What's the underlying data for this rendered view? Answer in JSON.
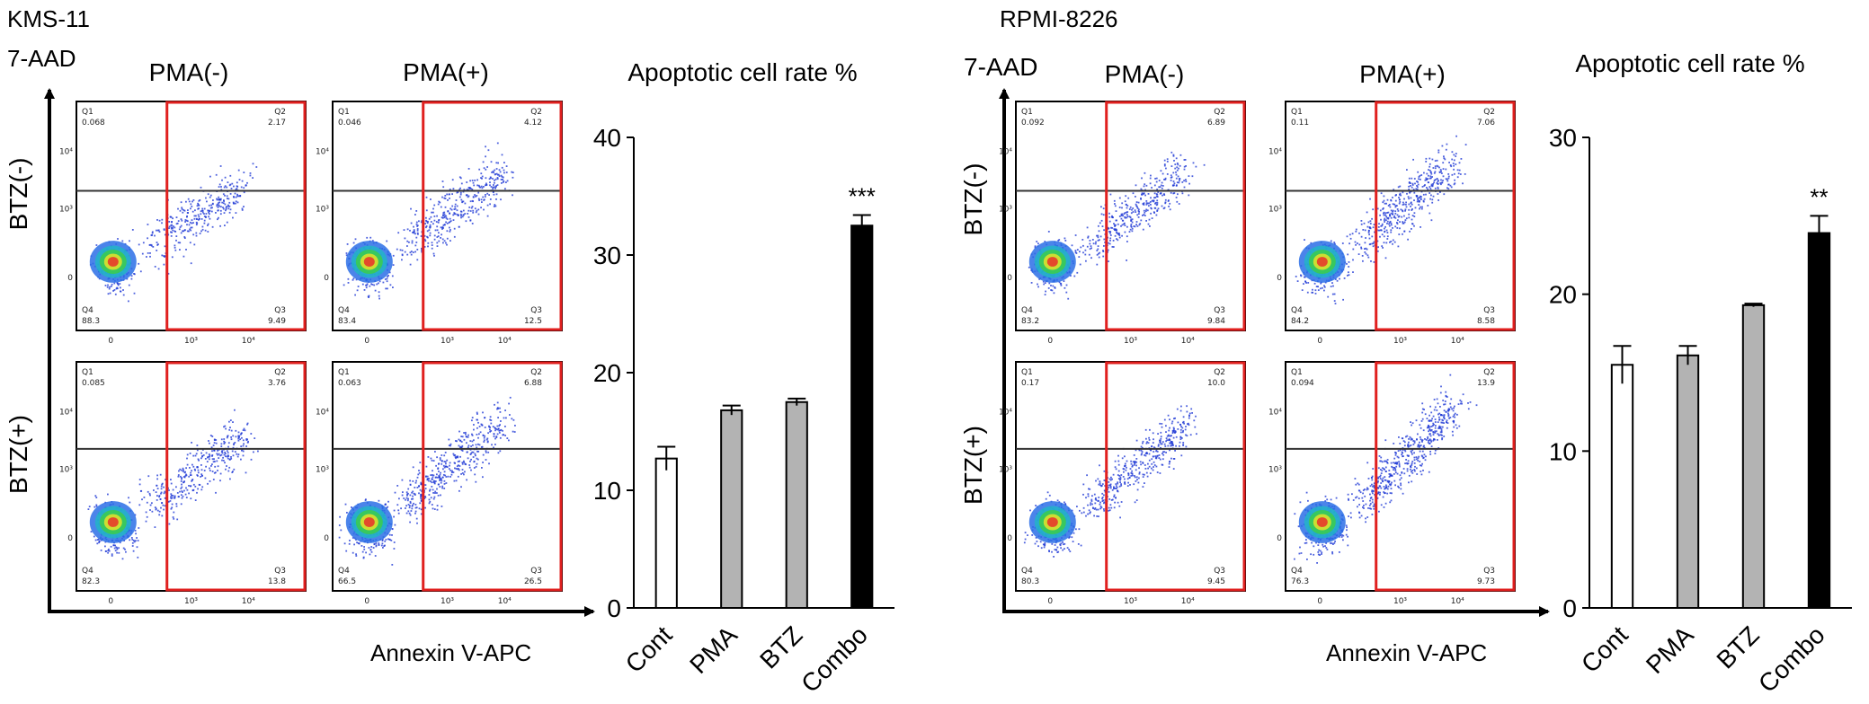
{
  "panels": [
    {
      "cell_line": "KMS-11",
      "y_axis_label": "7-AAD",
      "x_axis_label": "Annexin V-APC",
      "col_headers": [
        "PMA(-)",
        "PMA(+)"
      ],
      "row_labels": [
        "BTZ(-)",
        "BTZ(+)"
      ],
      "flow_plots": [
        {
          "q1": "Q1",
          "q1_val": "0.068",
          "q2": "Q2",
          "q2_val": "2.17",
          "q3": "Q3",
          "q3_val": "9.49",
          "q4": "Q4",
          "q4_val": "88.3"
        },
        {
          "q1": "Q1",
          "q1_val": "0.046",
          "q2": "Q2",
          "q2_val": "4.12",
          "q3": "Q3",
          "q3_val": "12.5",
          "q4": "Q4",
          "q4_val": "83.4"
        },
        {
          "q1": "Q1",
          "q1_val": "0.085",
          "q2": "Q2",
          "q2_val": "3.76",
          "q3": "Q3",
          "q3_val": "13.8",
          "q4": "Q4",
          "q4_val": "82.3"
        },
        {
          "q1": "Q1",
          "q1_val": "0.063",
          "q2": "Q2",
          "q2_val": "6.88",
          "q3": "Q3",
          "q3_val": "26.5",
          "q4": "Q4",
          "q4_val": "66.5"
        }
      ]
    },
    {
      "cell_line": "RPMI-8226",
      "y_axis_label": "7-AAD",
      "x_axis_label": "Annexin V-APC",
      "col_headers": [
        "PMA(-)",
        "PMA(+)"
      ],
      "row_labels": [
        "BTZ(-)",
        "BTZ(+)"
      ],
      "flow_plots": [
        {
          "q1": "Q1",
          "q1_val": "0.092",
          "q2": "Q2",
          "q2_val": "6.89",
          "q3": "Q3",
          "q3_val": "9.84",
          "q4": "Q4",
          "q4_val": "83.2"
        },
        {
          "q1": "Q1",
          "q1_val": "0.11",
          "q2": "Q2",
          "q2_val": "7.06",
          "q3": "Q3",
          "q3_val": "8.58",
          "q4": "Q4",
          "q4_val": "84.2"
        },
        {
          "q1": "Q1",
          "q1_val": "0.17",
          "q2": "Q2",
          "q2_val": "10.0",
          "q3": "Q3",
          "q3_val": "9.45",
          "q4": "Q4",
          "q4_val": "80.3"
        },
        {
          "q1": "Q1",
          "q1_val": "0.094",
          "q2": "Q2",
          "q2_val": "13.9",
          "q3": "Q3",
          "q3_val": "9.73",
          "q4": "Q4",
          "q4_val": "76.3"
        }
      ]
    }
  ],
  "axis_tick_labels": {
    "x": [
      "0",
      "10³",
      "10⁴"
    ],
    "y": [
      "0",
      "10³",
      "10⁴"
    ]
  },
  "colors": {
    "gate": "#e0201f",
    "quadrant_line": "#333333",
    "dot_blue": "#1f3ad6",
    "hot": "#e8302a",
    "bar_cont": "#ffffff",
    "bar_mid": "#b3b3b3",
    "bar_combo": "#000000"
  },
  "chart_data": [
    {
      "type": "bar",
      "title": "Apoptotic cell rate %",
      "categories": [
        "Cont",
        "PMA",
        "BTZ",
        "Combo"
      ],
      "values": [
        12.7,
        16.8,
        17.5,
        32.5
      ],
      "errors": [
        1.0,
        0.4,
        0.3,
        0.9
      ],
      "significance": [
        "",
        "",
        "",
        "***"
      ],
      "ylim": [
        0,
        40
      ],
      "yticks": [
        0,
        10,
        20,
        30,
        40
      ],
      "xlabel": "",
      "ylabel": "",
      "grid": false
    },
    {
      "type": "bar",
      "title": "Apoptotic cell rate %",
      "categories": [
        "Cont",
        "PMA",
        "BTZ",
        "Combo"
      ],
      "values": [
        15.5,
        16.1,
        19.3,
        23.9
      ],
      "errors": [
        1.2,
        0.6,
        0.1,
        1.1
      ],
      "significance": [
        "",
        "",
        "",
        "**"
      ],
      "ylim": [
        0,
        30
      ],
      "yticks": [
        0,
        10,
        20,
        30
      ],
      "xlabel": "",
      "ylabel": "",
      "grid": false
    }
  ]
}
